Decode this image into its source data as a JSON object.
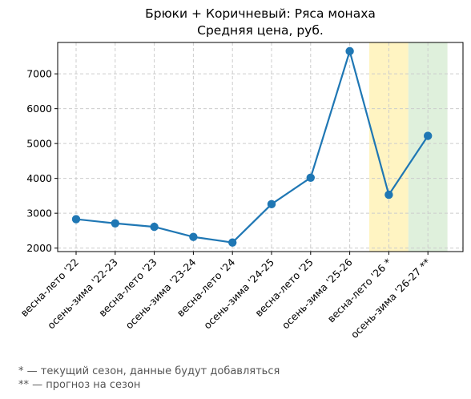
{
  "chart_data": {
    "type": "line",
    "title": "Брюки + Коричневый: Ряса монаха",
    "subtitle": "Средняя цена, руб.",
    "xlabel": "",
    "ylabel": "",
    "categories": [
      "весна-лето '22",
      "осень-зима '22-23",
      "весна-лето '23",
      "осень-зима '23-24",
      "весна-лето '24",
      "осень-зима '24-25",
      "весна-лето '25",
      "осень-зима '25-26",
      "весна-лето '26 *",
      "осень-зима '26-27 **"
    ],
    "values": [
      2830,
      2710,
      2610,
      2320,
      2160,
      3260,
      4020,
      7650,
      3530,
      5220
    ],
    "ylim": [
      1900,
      7900
    ],
    "yticks": [
      2000,
      3000,
      4000,
      5000,
      6000,
      7000
    ],
    "grid": true,
    "line_color": "#1f77b4",
    "highlight_current": {
      "index": 8,
      "color": "#fff4c2"
    },
    "highlight_forecast": {
      "index": 9,
      "color": "#dff0dc"
    }
  },
  "footnotes": {
    "current": "* — текущий сезон, данные будут добавляться",
    "forecast": "** — прогноз на сезон"
  }
}
